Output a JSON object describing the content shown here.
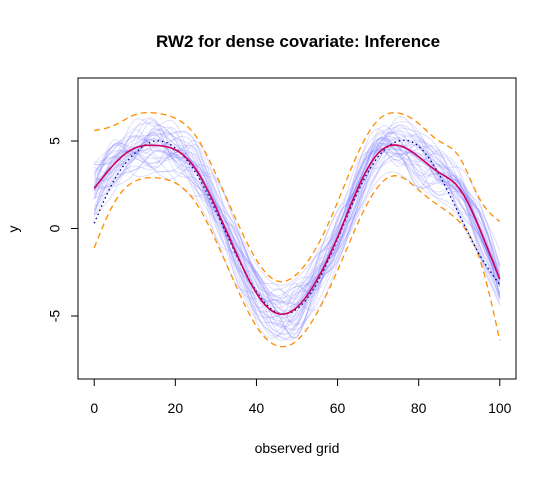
{
  "chart_data": {
    "type": "line",
    "title": "RW2 for dense covariate: Inference",
    "xlabel": "observed grid",
    "ylabel": "y",
    "xlim": [
      -4,
      104
    ],
    "ylim": [
      -8.6,
      8.6
    ],
    "x_ticks": [
      0,
      20,
      40,
      60,
      80,
      100
    ],
    "x_tick_labels": [
      "0",
      "20",
      "40",
      "60",
      "80",
      "100"
    ],
    "y_ticks": [
      -5,
      0,
      5
    ],
    "y_tick_labels": [
      "-5",
      "0",
      "5"
    ],
    "grid": false,
    "legend": "none",
    "x": [
      0,
      5,
      10,
      15,
      20,
      25,
      30,
      35,
      40,
      45,
      50,
      55,
      60,
      65,
      70,
      75,
      80,
      85,
      90,
      95,
      100
    ],
    "series": [
      {
        "role": "true-function",
        "style": "dotted",
        "color": "#000080",
        "values": [
          0.3,
          2.8,
          4.3,
          5.0,
          4.6,
          3.2,
          1.0,
          -1.5,
          -3.6,
          -4.8,
          -4.6,
          -3.1,
          -0.6,
          2.1,
          4.1,
          5.0,
          4.7,
          3.1,
          0.8,
          -1.5,
          -3.2
        ]
      },
      {
        "role": "posterior-mean",
        "style": "solid",
        "color": "#d0005a",
        "values": [
          2.3,
          3.7,
          4.6,
          4.75,
          4.5,
          3.4,
          1.2,
          -1.4,
          -3.7,
          -4.85,
          -4.5,
          -2.9,
          -0.5,
          2.3,
          4.3,
          4.75,
          4.1,
          3.2,
          2.3,
          0.0,
          -2.9
        ]
      },
      {
        "role": "upper-band",
        "style": "dashed",
        "color": "#ff8c00",
        "values": [
          5.6,
          5.9,
          6.5,
          6.6,
          6.3,
          5.3,
          3.1,
          0.5,
          -1.8,
          -3.0,
          -2.6,
          -1.0,
          1.5,
          4.3,
          6.2,
          6.6,
          6.0,
          5.0,
          4.1,
          1.7,
          0.4
        ]
      },
      {
        "role": "lower-band",
        "style": "dashed",
        "color": "#ff8c00",
        "values": [
          -1.1,
          1.5,
          2.7,
          2.9,
          2.6,
          1.5,
          -0.7,
          -3.3,
          -5.6,
          -6.7,
          -6.4,
          -4.8,
          -2.4,
          0.3,
          2.4,
          3.0,
          2.2,
          1.3,
          0.4,
          -1.7,
          -6.4
        ]
      }
    ],
    "sample_curves": {
      "role": "posterior-samples",
      "color": "#8080ff",
      "opacity": 0.25,
      "count": 40
    }
  }
}
